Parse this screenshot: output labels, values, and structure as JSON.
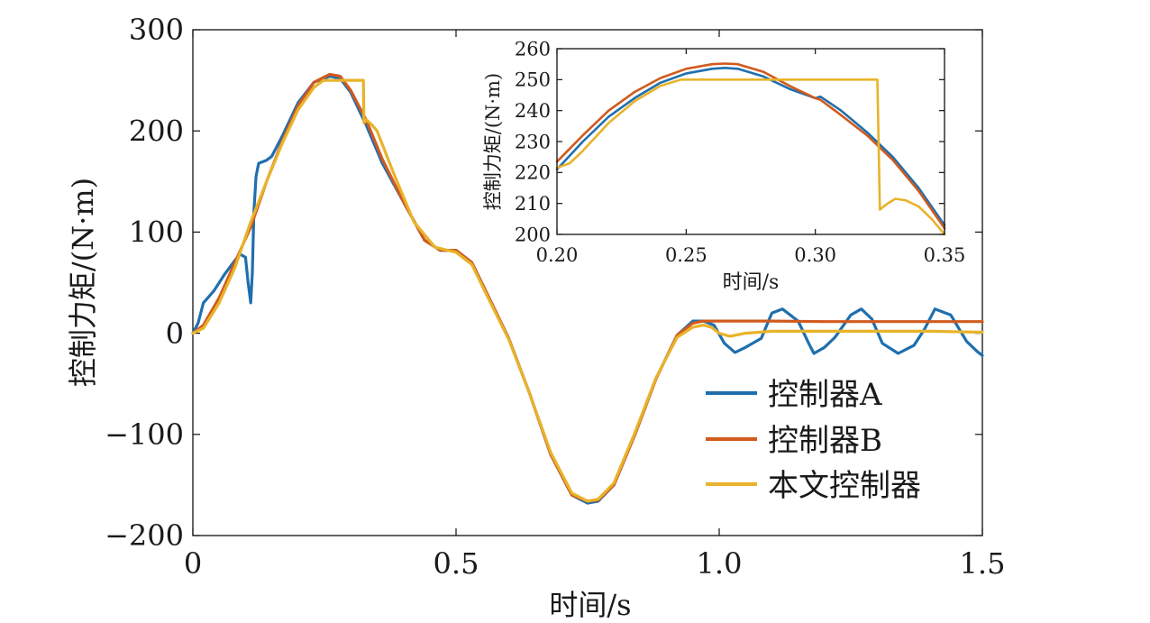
{
  "chart_data": [
    {
      "type": "line",
      "title": "",
      "xlabel": "时间/s",
      "ylabel": "控制力矩/(N·m)",
      "xlim": [
        0,
        1.5
      ],
      "ylim": [
        -200,
        300
      ],
      "xticks": [
        0,
        0.5,
        1.0,
        1.5
      ],
      "xtick_labels": [
        "0",
        "0.5",
        "1.0",
        "1.5"
      ],
      "yticks": [
        -200,
        -100,
        0,
        100,
        200,
        300
      ],
      "ytick_labels": [
        "−200",
        "−100",
        "0",
        "100",
        "200",
        "300"
      ],
      "grid": false,
      "legend_position": "lower-right",
      "series": [
        {
          "name": "控制器A",
          "color": "#1f6fae",
          "x": [
            0,
            0.01,
            0.02,
            0.04,
            0.06,
            0.08,
            0.09,
            0.1,
            0.105,
            0.11,
            0.113,
            0.116,
            0.12,
            0.125,
            0.13,
            0.14,
            0.15,
            0.17,
            0.2,
            0.23,
            0.26,
            0.28,
            0.3,
            0.33,
            0.36,
            0.4,
            0.44,
            0.47,
            0.5,
            0.53,
            0.56,
            0.6,
            0.64,
            0.68,
            0.72,
            0.75,
            0.77,
            0.8,
            0.84,
            0.88,
            0.92,
            0.95,
            0.97,
            0.99,
            1.01,
            1.03,
            1.05,
            1.08,
            1.1,
            1.12,
            1.15,
            1.17,
            1.18,
            1.2,
            1.22,
            1.25,
            1.27,
            1.29,
            1.31,
            1.34,
            1.37,
            1.39,
            1.41,
            1.44,
            1.47,
            1.49,
            1.5
          ],
          "y": [
            0,
            10,
            30,
            42,
            58,
            72,
            78,
            75,
            50,
            30,
            60,
            120,
            155,
            168,
            169,
            171,
            175,
            195,
            228,
            248,
            254,
            252,
            238,
            205,
            168,
            130,
            92,
            82,
            82,
            70,
            38,
            -5,
            -60,
            -120,
            -160,
            -168,
            -166,
            -150,
            -100,
            -45,
            -2,
            12,
            12,
            8,
            -10,
            -19,
            -14,
            -5,
            20,
            24,
            12,
            -10,
            -20,
            -14,
            -4,
            18,
            24,
            14,
            -10,
            -20,
            -12,
            4,
            24,
            18,
            -8,
            -18,
            -22
          ]
        },
        {
          "name": "控制器B",
          "color": "#d15a1e",
          "x": [
            0,
            0.02,
            0.05,
            0.08,
            0.11,
            0.14,
            0.17,
            0.2,
            0.23,
            0.26,
            0.28,
            0.3,
            0.33,
            0.36,
            0.4,
            0.44,
            0.47,
            0.5,
            0.53,
            0.56,
            0.6,
            0.64,
            0.68,
            0.72,
            0.75,
            0.77,
            0.8,
            0.84,
            0.88,
            0.92,
            0.95,
            0.97,
            1.0,
            1.1,
            1.2,
            1.3,
            1.4,
            1.5
          ],
          "y": [
            0,
            8,
            35,
            70,
            105,
            150,
            190,
            225,
            248,
            256,
            254,
            240,
            210,
            172,
            130,
            92,
            82,
            82,
            70,
            38,
            -5,
            -60,
            -120,
            -160,
            -166,
            -165,
            -150,
            -100,
            -45,
            -2,
            10,
            12,
            12,
            12,
            11.5,
            11.5,
            11.5,
            11.5
          ]
        },
        {
          "name": "本文控制器",
          "color": "#e8b32a",
          "x": [
            0,
            0.02,
            0.05,
            0.08,
            0.11,
            0.14,
            0.17,
            0.2,
            0.23,
            0.248,
            0.26,
            0.28,
            0.3,
            0.32,
            0.324,
            0.325,
            0.33,
            0.34,
            0.35,
            0.38,
            0.42,
            0.46,
            0.5,
            0.53,
            0.56,
            0.6,
            0.64,
            0.68,
            0.72,
            0.75,
            0.77,
            0.8,
            0.84,
            0.88,
            0.92,
            0.95,
            0.97,
            0.985,
            1.0,
            1.02,
            1.05,
            1.1,
            1.2,
            1.3,
            1.4,
            1.5
          ],
          "y": [
            0,
            5,
            30,
            65,
            110,
            150,
            188,
            221,
            243,
            250,
            250,
            250,
            250,
            250,
            250,
            208,
            211,
            206,
            200,
            160,
            110,
            85,
            80,
            68,
            36,
            -6,
            -60,
            -118,
            -158,
            -166,
            -164,
            -148,
            -98,
            -44,
            -4,
            6,
            8,
            6,
            0,
            -3,
            0,
            2,
            2,
            2,
            2,
            1
          ]
        }
      ]
    },
    {
      "type": "line",
      "title": "",
      "xlabel": "时间/s",
      "ylabel": "控制力矩/(N·m)",
      "xlim": [
        0.2,
        0.35
      ],
      "ylim": [
        200,
        260
      ],
      "xticks": [
        0.2,
        0.25,
        0.3,
        0.35
      ],
      "xtick_labels": [
        "0.20",
        "0.25",
        "0.30",
        "0.35"
      ],
      "yticks": [
        200,
        210,
        220,
        230,
        240,
        250,
        260
      ],
      "ytick_labels": [
        "200",
        "210",
        "220",
        "230",
        "240",
        "250",
        "260"
      ],
      "grid": false,
      "series": [
        {
          "color": "#1f6fae",
          "x": [
            0.2,
            0.21,
            0.22,
            0.23,
            0.24,
            0.25,
            0.26,
            0.265,
            0.27,
            0.28,
            0.29,
            0.3,
            0.302,
            0.31,
            0.32,
            0.33,
            0.34,
            0.35
          ],
          "y": [
            221,
            230,
            238,
            244,
            249,
            252,
            253.5,
            253.8,
            253.5,
            251,
            247,
            244,
            244.5,
            240,
            233,
            225,
            215,
            203
          ]
        },
        {
          "color": "#d15a1e",
          "x": [
            0.2,
            0.21,
            0.22,
            0.23,
            0.24,
            0.25,
            0.26,
            0.265,
            0.27,
            0.28,
            0.29,
            0.3,
            0.302,
            0.31,
            0.32,
            0.33,
            0.34,
            0.35
          ],
          "y": [
            223.5,
            232,
            240,
            246,
            250.5,
            253.5,
            255,
            255.2,
            255,
            252.5,
            248,
            244,
            243.5,
            238.5,
            232,
            224,
            214,
            202
          ]
        },
        {
          "color": "#e8b32a",
          "x": [
            0.2,
            0.205,
            0.21,
            0.22,
            0.23,
            0.24,
            0.248,
            0.26,
            0.28,
            0.3,
            0.32,
            0.324,
            0.325,
            0.328,
            0.331,
            0.335,
            0.34,
            0.345,
            0.35
          ],
          "y": [
            221.5,
            223,
            227,
            236,
            243,
            248,
            250,
            250,
            250,
            250,
            250,
            250,
            208,
            210,
            211.5,
            211,
            209,
            205,
            200
          ]
        }
      ]
    }
  ]
}
